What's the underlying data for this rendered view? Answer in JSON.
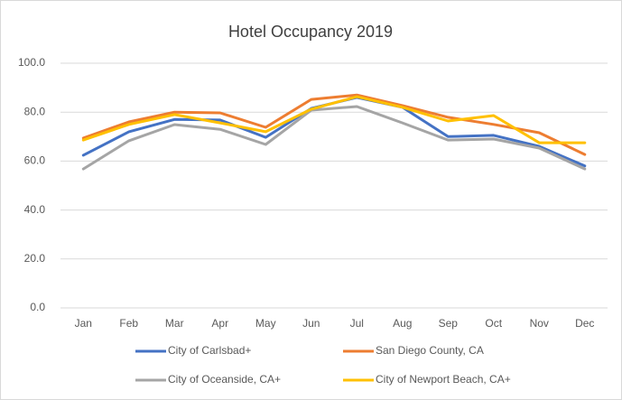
{
  "chart_data": {
    "type": "line",
    "title": "Hotel Occupancy 2019",
    "categories": [
      "Jan",
      "Feb",
      "Mar",
      "Apr",
      "May",
      "Jun",
      "Jul",
      "Aug",
      "Sep",
      "Oct",
      "Nov",
      "Dec"
    ],
    "series": [
      {
        "name": "City of Carlsbad+",
        "color": "#4472c4",
        "values": [
          62.4,
          72,
          77,
          76.8,
          69.7,
          81.5,
          86,
          82,
          70,
          70.5,
          66,
          58
        ]
      },
      {
        "name": "San Diego County, CA",
        "color": "#ed7d31",
        "values": [
          69.4,
          76,
          80,
          79.7,
          73.8,
          85.2,
          87,
          82.7,
          77.9,
          75,
          71.6,
          62.7
        ]
      },
      {
        "name": "City of Oceanside, CA+",
        "color": "#a5a5a5",
        "values": [
          56.8,
          68.3,
          74.9,
          73,
          66.8,
          80.8,
          82.3,
          75.6,
          68.6,
          69,
          65.3,
          56.8
        ]
      },
      {
        "name": "City of Newport Beach, CA+",
        "color": "#ffc000",
        "values": [
          68.6,
          75,
          79,
          75.6,
          72,
          81.2,
          86.3,
          82,
          76.4,
          78.6,
          67.5,
          67.5
        ]
      }
    ],
    "ylim": [
      0,
      100
    ],
    "yticks": [
      {
        "value": 0,
        "label": "0.0"
      },
      {
        "value": 20,
        "label": "20.0"
      },
      {
        "value": 40,
        "label": "40.0"
      },
      {
        "value": 60,
        "label": "60.0"
      },
      {
        "value": 80,
        "label": "80.0"
      },
      {
        "value": 100,
        "label": "100.0"
      }
    ],
    "grid": true
  }
}
